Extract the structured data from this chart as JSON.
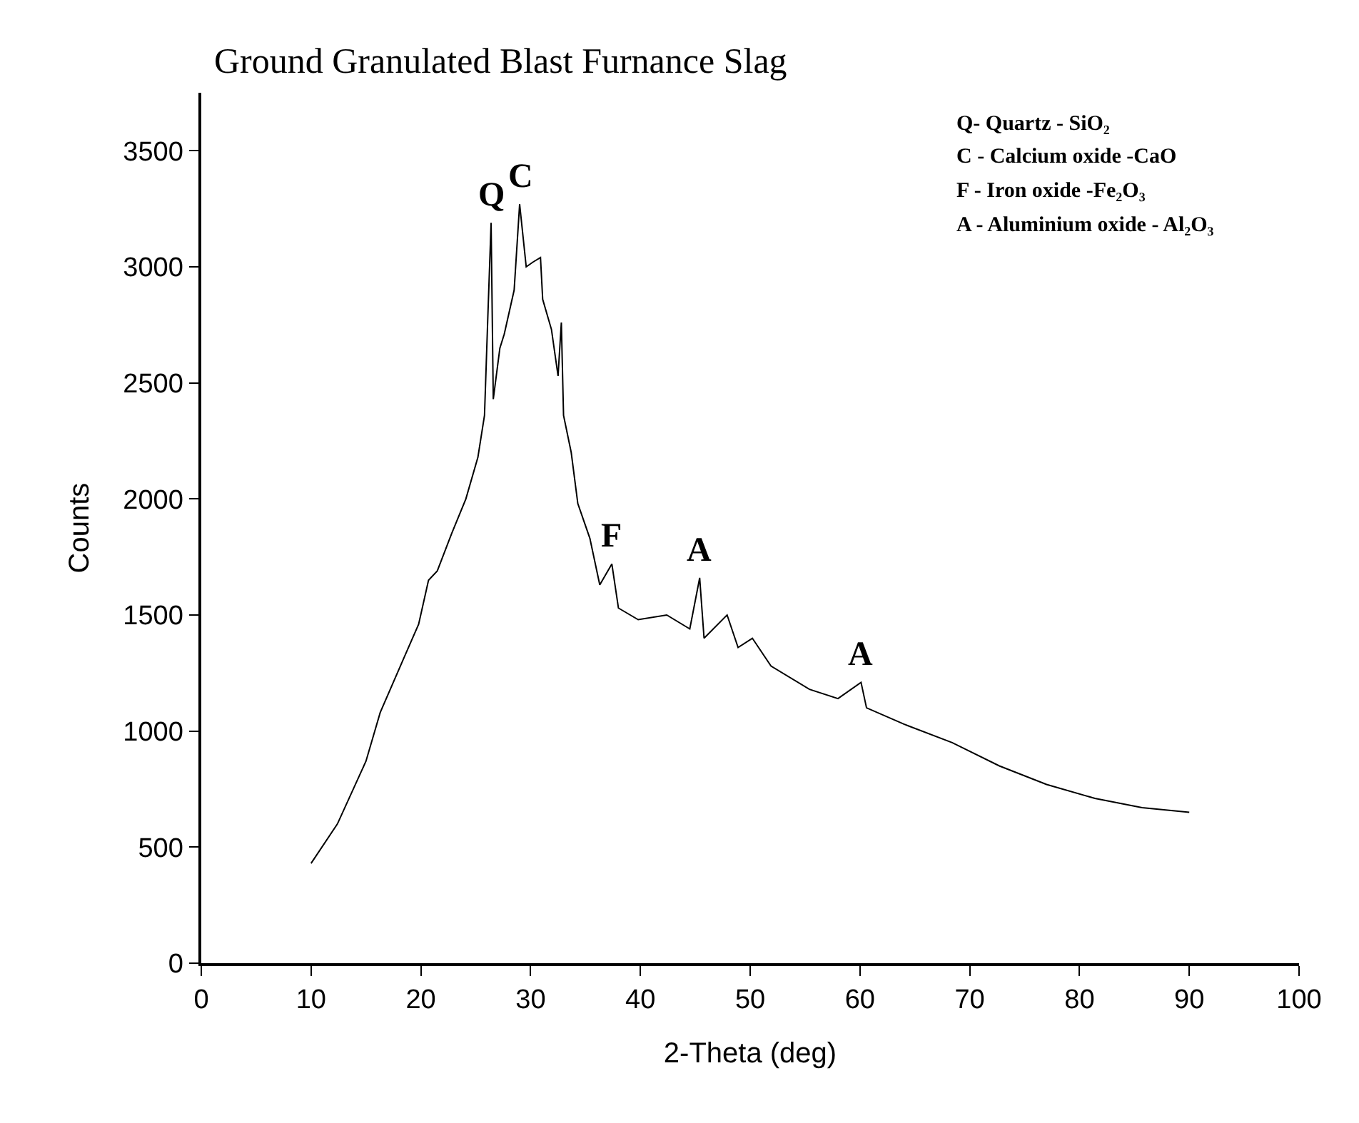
{
  "chart_data": {
    "type": "line",
    "title": "Ground Granulated Blast Furnance Slag",
    "xlabel": "2-Theta (deg)",
    "ylabel": "Counts",
    "x": [
      10,
      12.4,
      15.0,
      16.3,
      18.5,
      19.8,
      20.7,
      21.5,
      22.8,
      24.1,
      25.2,
      25.8,
      26.1,
      26.4,
      26.6,
      27.2,
      27.6,
      28.5,
      29.0,
      29.6,
      30.2,
      30.9,
      31.1,
      31.9,
      32.5,
      32.8,
      33.0,
      33.7,
      34.3,
      35.4,
      36.3,
      37.4,
      38.0,
      39.8,
      42.4,
      44.5,
      45.4,
      45.8,
      47.9,
      48.9,
      50.2,
      51.9,
      55.4,
      58.0,
      60.1,
      60.6,
      64.0,
      68.4,
      72.7,
      77.0,
      81.4,
      85.7,
      90
    ],
    "series": [
      {
        "color": "#000000",
        "values": [
          430,
          600,
          870,
          1080,
          1320,
          1460,
          1650,
          1690,
          1850,
          2000,
          2180,
          2360,
          2780,
          3190,
          2430,
          2650,
          2710,
          2900,
          3270,
          3000,
          3020,
          3040,
          2860,
          2730,
          2530,
          2760,
          2360,
          2200,
          1980,
          1830,
          1630,
          1720,
          1530,
          1480,
          1500,
          1440,
          1660,
          1400,
          1500,
          1360,
          1400,
          1280,
          1180,
          1140,
          1210,
          1100,
          1030,
          950,
          850,
          770,
          710,
          670,
          650
        ]
      }
    ],
    "xlim": [
      0,
      100
    ],
    "xticks": [
      0,
      10,
      20,
      30,
      40,
      50,
      60,
      70,
      80,
      90,
      100
    ],
    "ylim": [
      0,
      3750
    ],
    "yticks": [
      0,
      500,
      1000,
      1500,
      2000,
      2500,
      3000,
      3500
    ],
    "grid": false,
    "marker": "none",
    "line_style": "solid",
    "annotations": [
      {
        "text": "Q",
        "x": 26.4,
        "y": 3190
      },
      {
        "text": "C",
        "x": 29.0,
        "y": 3270
      },
      {
        "text": "F",
        "x": 37.4,
        "y": 1720
      },
      {
        "text": "A",
        "x": 45.4,
        "y": 1660
      },
      {
        "text": "A",
        "x": 60.1,
        "y": 1210
      },
      "Q- Quartz - SiO₂",
      "C - Calcium oxide -CaO",
      "F - Iron oxide -Fe₂O₃",
      "A - Aluminium oxide - Al₂O₃"
    ]
  }
}
